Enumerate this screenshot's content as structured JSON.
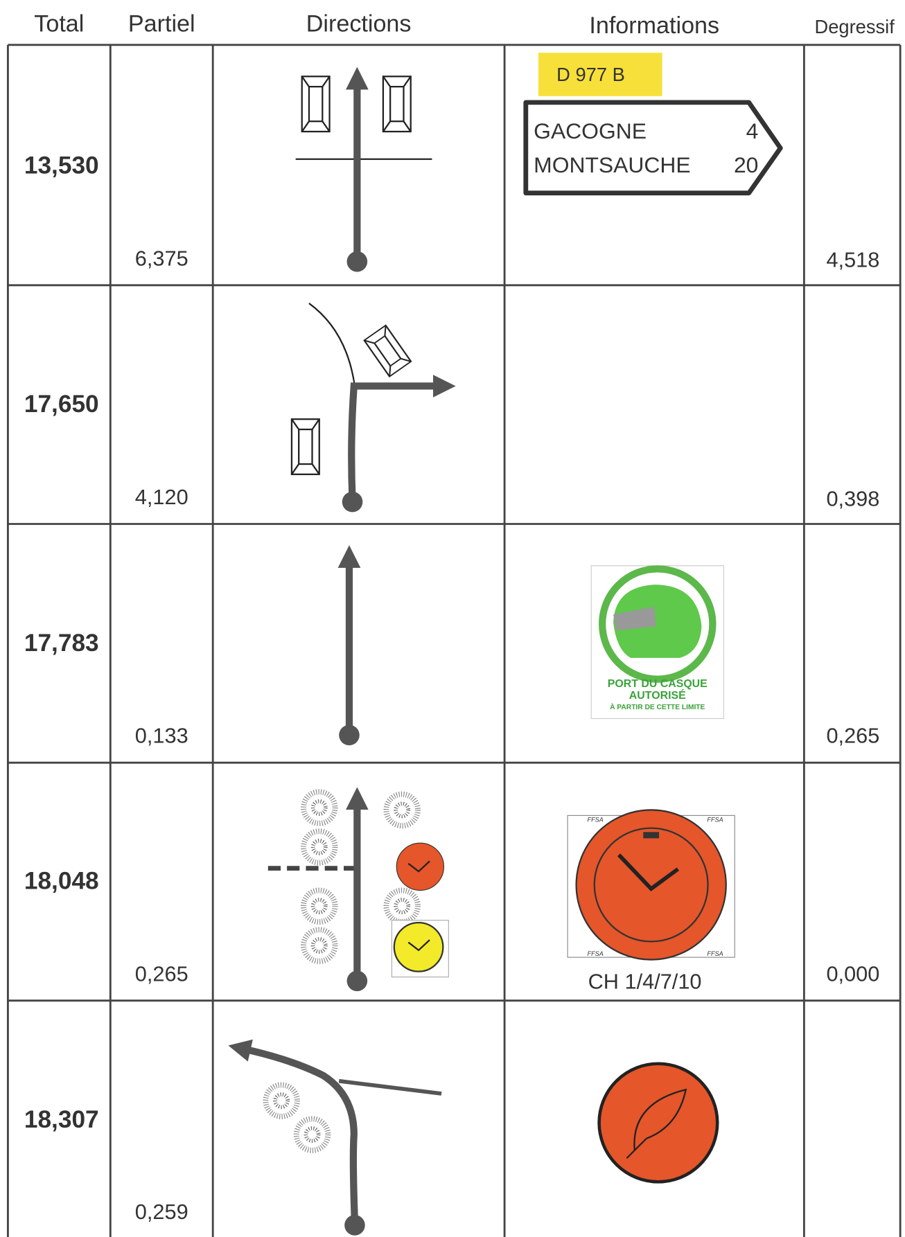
{
  "header": {
    "columns": [
      "Total",
      "Partiel",
      "Directions",
      "Informations",
      "Degressif"
    ]
  },
  "rows": [
    {
      "total": "13,530",
      "partiel": "6,375",
      "degressif": "4,518",
      "info": {
        "road": "D 977 B",
        "sign": [
          [
            "GACOGNE",
            "4"
          ],
          [
            "MONTSAUCHE",
            "20"
          ]
        ]
      }
    },
    {
      "total": "17,650",
      "partiel": "4,120",
      "degressif": "0,398"
    },
    {
      "total": "17,783",
      "partiel": "0,133",
      "degressif": "0,265",
      "info": {
        "panel": [
          "PORT DU CASQUE",
          "AUTORISÉ",
          "À PARTIR DE CETTE LIMITE"
        ]
      }
    },
    {
      "total": "18,048",
      "partiel": "0,265",
      "degressif": "0,000",
      "info": {
        "caption": "CH 1/4/7/10",
        "clock_labels": [
          "FFSA",
          "FFSA",
          "FFSA",
          "FFSA"
        ]
      }
    },
    {
      "total": "18,307",
      "partiel": "0,259"
    }
  ]
}
